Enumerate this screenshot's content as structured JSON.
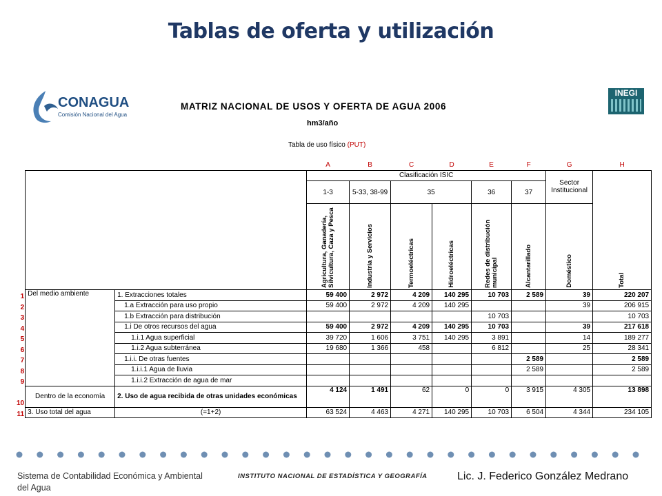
{
  "title": "Tablas de oferta y utilización",
  "logo_left": {
    "name": "CONAGUA",
    "subtitle": "Comisión Nacional del Agua"
  },
  "logo_right": {
    "name": "INEGI"
  },
  "matrix_title": "MATRIZ NACIONAL DE USOS Y OFERTA DE AGUA 2006",
  "unit": "hm3/año",
  "table_caption": {
    "text": "Tabla de uso físico",
    "tag": "(PUT)"
  },
  "table": {
    "column_letters": [
      "A",
      "B",
      "C",
      "D",
      "E",
      "F",
      "G",
      "H"
    ],
    "isic_header": "Clasificación ISIC",
    "sector_header": "Sector Institucional",
    "codes": [
      "1-3",
      "5-33, 38-99",
      "35",
      "36",
      "37"
    ],
    "columns": [
      "Agricultura, Ganadería, Silvicultura, Caza y Pesca",
      "Industria y Servicios",
      "Termoeléctricas",
      "Hidroeléctricas",
      "Redes de distribución municipal",
      "Alcantarillado",
      "Doméstico",
      "Total"
    ],
    "groups": [
      "Del medio ambiente",
      "Dentro de la economía"
    ],
    "rows": [
      {
        "number": "1",
        "label": "1. Extracciones totales",
        "bold": true,
        "values": [
          "59 400",
          "2 972",
          "4 209",
          "140 295",
          "10 703",
          "2 589",
          "39",
          "220 207"
        ]
      },
      {
        "number": "2",
        "label": "1.a Extracción para uso propio",
        "bold": false,
        "values": [
          "59 400",
          "2 972",
          "4 209",
          "140 295",
          null,
          null,
          "39",
          "206 915"
        ]
      },
      {
        "number": "3",
        "label": "1.b Extracción para distribución",
        "bold": false,
        "values": [
          null,
          null,
          null,
          null,
          "10 703",
          null,
          null,
          "10 703"
        ]
      },
      {
        "number": "4",
        "label": "1.i De otros recursos del agua",
        "bold": true,
        "values": [
          "59 400",
          "2 972",
          "4 209",
          "140 295",
          "10 703",
          null,
          "39",
          "217 618"
        ]
      },
      {
        "number": "5",
        "label": "1.i.1 Agua superficial",
        "bold": false,
        "values": [
          "39 720",
          "1 606",
          "3 751",
          "140 295",
          "3 891",
          null,
          "14",
          "189 277"
        ]
      },
      {
        "number": "6",
        "label": "1.i.2 Agua subterránea",
        "bold": false,
        "values": [
          "19 680",
          "1 366",
          "458",
          null,
          "6 812",
          null,
          "25",
          "28 341"
        ]
      },
      {
        "number": "7",
        "label": "1.i.i. De otras fuentes",
        "bold": true,
        "values": [
          null,
          null,
          null,
          null,
          null,
          "2 589",
          null,
          "2 589"
        ]
      },
      {
        "number": "8",
        "label": "1.i.i.1 Agua de lluvia",
        "bold": false,
        "values": [
          null,
          null,
          null,
          null,
          null,
          "2 589",
          null,
          "2 589"
        ]
      },
      {
        "number": "9",
        "label": "1.i.i.2 Extracción de agua de mar",
        "bold": false,
        "values": [
          null,
          null,
          null,
          null,
          null,
          null,
          null,
          null
        ]
      },
      {
        "number": "10",
        "label": "2. Uso de agua recibida de otras unidades económicas",
        "bold": false,
        "values": [
          "4 124",
          "1 491",
          "62",
          "0",
          "0",
          "3 915",
          "4 305",
          "13 898"
        ]
      }
    ],
    "total_row": {
      "number": "11",
      "group": "3. Uso total del agua",
      "label": "(=1+2)",
      "values": [
        "63 524",
        "4 463",
        "4 271",
        "140 295",
        "10 703",
        "6 504",
        "4 344",
        "234 105"
      ]
    }
  },
  "footer": {
    "left": "Sistema de Contabilidad Económica y Ambiental del Agua",
    "center": "INSTITUTO NACIONAL DE ESTADÍSTICA Y GEOGRAFÍA",
    "right": "Lic. J. Federico González Medrano"
  }
}
